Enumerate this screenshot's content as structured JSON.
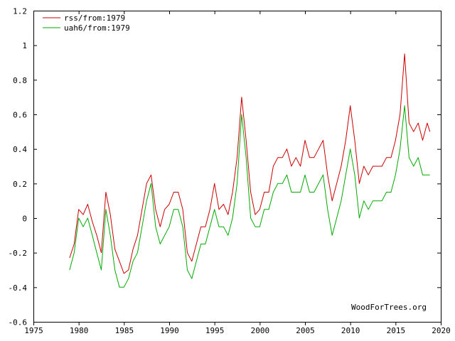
{
  "chart_data": {
    "type": "line",
    "title": "",
    "xlabel": "",
    "ylabel": "",
    "xlim": [
      1975,
      2020
    ],
    "ylim": [
      -0.6,
      1.2
    ],
    "x_ticks": [
      1975,
      1980,
      1985,
      1990,
      1995,
      2000,
      2005,
      2010,
      2015,
      2020
    ],
    "y_ticks": [
      -0.6,
      -0.4,
      -0.2,
      0,
      0.2,
      0.4,
      0.6,
      0.8,
      1,
      1.2
    ],
    "x_tick_labels": [
      "1975",
      "1980",
      "1985",
      "1990",
      "1995",
      "2000",
      "2005",
      "2010",
      "2015",
      "2020"
    ],
    "y_tick_labels": [
      "-0.6",
      "-0.4",
      "-0.2",
      "0",
      "0.2",
      "0.4",
      "0.6",
      "0.8",
      "1",
      "1.2"
    ],
    "grid": false,
    "legend_position": "top-left",
    "watermark": "WoodForTrees.org",
    "series": [
      {
        "name": "rss/from:1979",
        "color": "#cc0000",
        "x": [
          1979.0,
          1979.5,
          1980.0,
          1980.5,
          1981.0,
          1981.5,
          1982.0,
          1982.5,
          1983.0,
          1983.5,
          1984.0,
          1984.5,
          1985.0,
          1985.5,
          1986.0,
          1986.5,
          1987.0,
          1987.5,
          1988.0,
          1988.5,
          1989.0,
          1989.5,
          1990.0,
          1990.5,
          1991.0,
          1991.5,
          1992.0,
          1992.5,
          1993.0,
          1993.5,
          1994.0,
          1994.5,
          1995.0,
          1995.5,
          1996.0,
          1996.5,
          1997.0,
          1997.5,
          1998.0,
          1998.5,
          1999.0,
          1999.5,
          2000.0,
          2000.5,
          2001.0,
          2001.5,
          2002.0,
          2002.5,
          2003.0,
          2003.5,
          2004.0,
          2004.5,
          2005.0,
          2005.5,
          2006.0,
          2006.5,
          2007.0,
          2007.5,
          2008.0,
          2008.5,
          2009.0,
          2009.5,
          2010.0,
          2010.5,
          2011.0,
          2011.5,
          2012.0,
          2012.5,
          2013.0,
          2013.5,
          2014.0,
          2014.5,
          2015.0,
          2015.5,
          2016.0,
          2016.5,
          2017.0,
          2017.5,
          2018.0,
          2018.5,
          2018.8
        ],
        "y": [
          -0.23,
          -0.15,
          0.05,
          0.02,
          0.08,
          -0.02,
          -0.1,
          -0.2,
          0.15,
          0.02,
          -0.18,
          -0.25,
          -0.32,
          -0.3,
          -0.18,
          -0.1,
          0.05,
          0.2,
          0.25,
          0.05,
          -0.05,
          0.05,
          0.08,
          0.15,
          0.15,
          0.05,
          -0.2,
          -0.25,
          -0.15,
          -0.05,
          -0.05,
          0.05,
          0.2,
          0.05,
          0.08,
          0.02,
          0.15,
          0.35,
          0.7,
          0.45,
          0.15,
          0.02,
          0.05,
          0.15,
          0.15,
          0.3,
          0.35,
          0.35,
          0.4,
          0.3,
          0.35,
          0.3,
          0.45,
          0.35,
          0.35,
          0.4,
          0.45,
          0.25,
          0.1,
          0.2,
          0.3,
          0.45,
          0.65,
          0.45,
          0.2,
          0.3,
          0.25,
          0.3,
          0.3,
          0.3,
          0.35,
          0.35,
          0.45,
          0.6,
          0.95,
          0.55,
          0.5,
          0.55,
          0.45,
          0.55,
          0.5
        ]
      },
      {
        "name": "uah6/from:1979",
        "color": "#00aa00",
        "x": [
          1979.0,
          1979.5,
          1980.0,
          1980.5,
          1981.0,
          1981.5,
          1982.0,
          1982.5,
          1983.0,
          1983.5,
          1984.0,
          1984.5,
          1985.0,
          1985.5,
          1986.0,
          1986.5,
          1987.0,
          1987.5,
          1988.0,
          1988.5,
          1989.0,
          1989.5,
          1990.0,
          1990.5,
          1991.0,
          1991.5,
          1992.0,
          1992.5,
          1993.0,
          1993.5,
          1994.0,
          1994.5,
          1995.0,
          1995.5,
          1996.0,
          1996.5,
          1997.0,
          1997.5,
          1998.0,
          1998.5,
          1999.0,
          1999.5,
          2000.0,
          2000.5,
          2001.0,
          2001.5,
          2002.0,
          2002.5,
          2003.0,
          2003.5,
          2004.0,
          2004.5,
          2005.0,
          2005.5,
          2006.0,
          2006.5,
          2007.0,
          2007.5,
          2008.0,
          2008.5,
          2009.0,
          2009.5,
          2010.0,
          2010.5,
          2011.0,
          2011.5,
          2012.0,
          2012.5,
          2013.0,
          2013.5,
          2014.0,
          2014.5,
          2015.0,
          2015.5,
          2016.0,
          2016.5,
          2017.0,
          2017.5,
          2018.0,
          2018.5,
          2018.8
        ],
        "y": [
          -0.3,
          -0.2,
          0.0,
          -0.05,
          0.0,
          -0.1,
          -0.2,
          -0.3,
          0.05,
          -0.1,
          -0.3,
          -0.4,
          -0.4,
          -0.35,
          -0.25,
          -0.2,
          -0.05,
          0.1,
          0.2,
          -0.05,
          -0.15,
          -0.1,
          -0.05,
          0.05,
          0.05,
          -0.05,
          -0.3,
          -0.35,
          -0.25,
          -0.15,
          -0.15,
          -0.05,
          0.05,
          -0.05,
          -0.05,
          -0.1,
          0.0,
          0.2,
          0.6,
          0.35,
          0.0,
          -0.05,
          -0.05,
          0.05,
          0.05,
          0.15,
          0.2,
          0.2,
          0.25,
          0.15,
          0.15,
          0.15,
          0.25,
          0.15,
          0.15,
          0.2,
          0.25,
          0.05,
          -0.1,
          0.0,
          0.1,
          0.25,
          0.4,
          0.25,
          0.0,
          0.1,
          0.05,
          0.1,
          0.1,
          0.1,
          0.15,
          0.15,
          0.25,
          0.4,
          0.65,
          0.35,
          0.3,
          0.35,
          0.25,
          0.25,
          0.25
        ]
      }
    ]
  }
}
